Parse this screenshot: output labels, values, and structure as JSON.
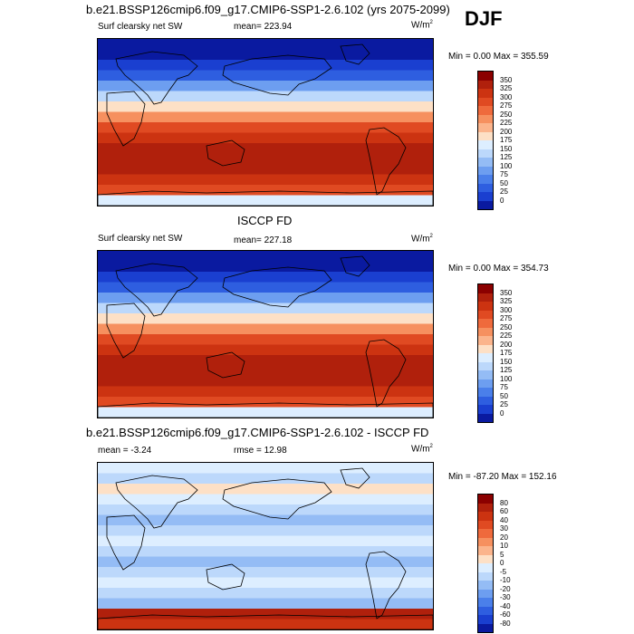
{
  "season": "DJF",
  "panels": [
    {
      "id": "model",
      "header": "b.e21.BSSP126cmip6.f09_g17.CMIP6-SSP1-2.6.102 (yrs 2075-2099)",
      "left_label": "Surf clearsky net SW",
      "center_label": "mean= 223.94",
      "units_base": "W/m",
      "units_exp": "2",
      "minmax": "Min =   0.00 Max = 355.59",
      "colorbar_ticks": [
        "350",
        "325",
        "300",
        "275",
        "250",
        "225",
        "200",
        "175",
        "150",
        "125",
        "100",
        "75",
        "50",
        "25",
        "0"
      ],
      "colors": [
        "#8b0000",
        "#b0200c",
        "#cc3311",
        "#e04a22",
        "#ef6a3c",
        "#f6905f",
        "#fbb48c",
        "#fde0c6",
        "#ddeeff",
        "#bcd8fb",
        "#94bcf5",
        "#6d9ef0",
        "#4a7fea",
        "#2e5ee0",
        "#1a3fd0",
        "#0a1aa0"
      ]
    },
    {
      "id": "obs",
      "header": "ISCCP FD",
      "left_label": "Surf clearsky net SW",
      "center_label": "mean= 227.18",
      "units_base": "W/m",
      "units_exp": "2",
      "minmax": "Min =   0.00 Max = 354.73",
      "colorbar_ticks": [
        "350",
        "325",
        "300",
        "275",
        "250",
        "225",
        "200",
        "175",
        "150",
        "125",
        "100",
        "75",
        "50",
        "25",
        "0"
      ],
      "colors": [
        "#8b0000",
        "#b0200c",
        "#cc3311",
        "#e04a22",
        "#ef6a3c",
        "#f6905f",
        "#fbb48c",
        "#fde0c6",
        "#ddeeff",
        "#bcd8fb",
        "#94bcf5",
        "#6d9ef0",
        "#4a7fea",
        "#2e5ee0",
        "#1a3fd0",
        "#0a1aa0"
      ]
    },
    {
      "id": "diff",
      "header": "b.e21.BSSP126cmip6.f09_g17.CMIP6-SSP1-2.6.102 - ISCCP FD",
      "left_label": "mean =  -3.24",
      "center_label": "rmse =  12.98",
      "units_base": "W/m",
      "units_exp": "2",
      "minmax": "Min = -87.20 Max = 152.16",
      "colorbar_ticks": [
        "80",
        "60",
        "40",
        "30",
        "20",
        "10",
        "5",
        "0",
        "-5",
        "-10",
        "-20",
        "-30",
        "-40",
        "-60",
        "-80"
      ],
      "colors": [
        "#8b0000",
        "#b0200c",
        "#cc3311",
        "#e04a22",
        "#ef6a3c",
        "#f6905f",
        "#fbb48c",
        "#fde0c6",
        "#ddeeff",
        "#bcd8fb",
        "#94bcf5",
        "#6d9ef0",
        "#4a7fea",
        "#2e5ee0",
        "#1a3fd0",
        "#0a1aa0"
      ]
    }
  ]
}
